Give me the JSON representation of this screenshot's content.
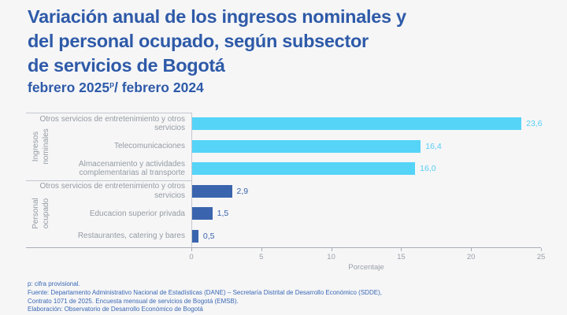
{
  "title": {
    "lines": [
      "Variación anual de los ingresos nominales y",
      "del personal ocupado, según subsector",
      "de servicios de Bogotá"
    ]
  },
  "subtitle": {
    "prefix": "febrero 2025",
    "superscript": "p",
    "suffix": "/ febrero 2024"
  },
  "chart_data": {
    "type": "bar",
    "orientation": "horizontal",
    "xlabel": "Porcentaje",
    "xlim": [
      0,
      25
    ],
    "xticks": [
      0,
      5,
      10,
      15,
      20,
      25
    ],
    "grid": false,
    "groups": [
      {
        "name": "Ingresos nominales",
        "name_lines": [
          "Ingresos",
          "nominales"
        ],
        "color": "#55D4F8",
        "value_color": "#55CEF4",
        "bars": [
          {
            "label": "Otros servicios de entretenimiento y otros servicios",
            "value": 23.6,
            "value_label": "23,6"
          },
          {
            "label": "Telecomunicaciones",
            "value": 16.4,
            "value_label": "16,4"
          },
          {
            "label": "Almacenamiento y actividades complementarias al transporte",
            "value": 16.0,
            "value_label": "16,0"
          }
        ]
      },
      {
        "name": "Personal ocupado",
        "name_lines": [
          "Personal",
          "ocupado"
        ],
        "color": "#3A64AE",
        "value_color": "#3A64AE",
        "bars": [
          {
            "label": "Otros servicios de entretenimiento y otros servicios",
            "value": 2.9,
            "value_label": "2,9"
          },
          {
            "label": "Educacion superior privada",
            "value": 1.5,
            "value_label": "1,5"
          },
          {
            "label": "Restaurantes, catering y bares",
            "value": 0.5,
            "value_label": "0,5"
          }
        ]
      }
    ]
  },
  "footer": {
    "lines": [
      "p: cifra provisional.",
      "Fuente: Departamento Administrativo Nacional de Estadísticas (DANE) – Secretaría Distrital de Desarrollo Económico (SDDE),",
      "Contrato 1071 de 2025. Encuesta mensual de servicios de Bogotá (EMSB).",
      "Elaboración: Observatorio de Desarrollo Económico de Bogotá"
    ]
  },
  "colors": {
    "background": "#F6F6F7",
    "title_text": "#2E5AA8",
    "bar_light": "#55D4F8",
    "bar_dark": "#3A64AE",
    "category_text": "#949BA2",
    "axis_line": "#A9AEB6",
    "tick_text": "#9AA0A8",
    "footer_text": "#3A68B4"
  }
}
